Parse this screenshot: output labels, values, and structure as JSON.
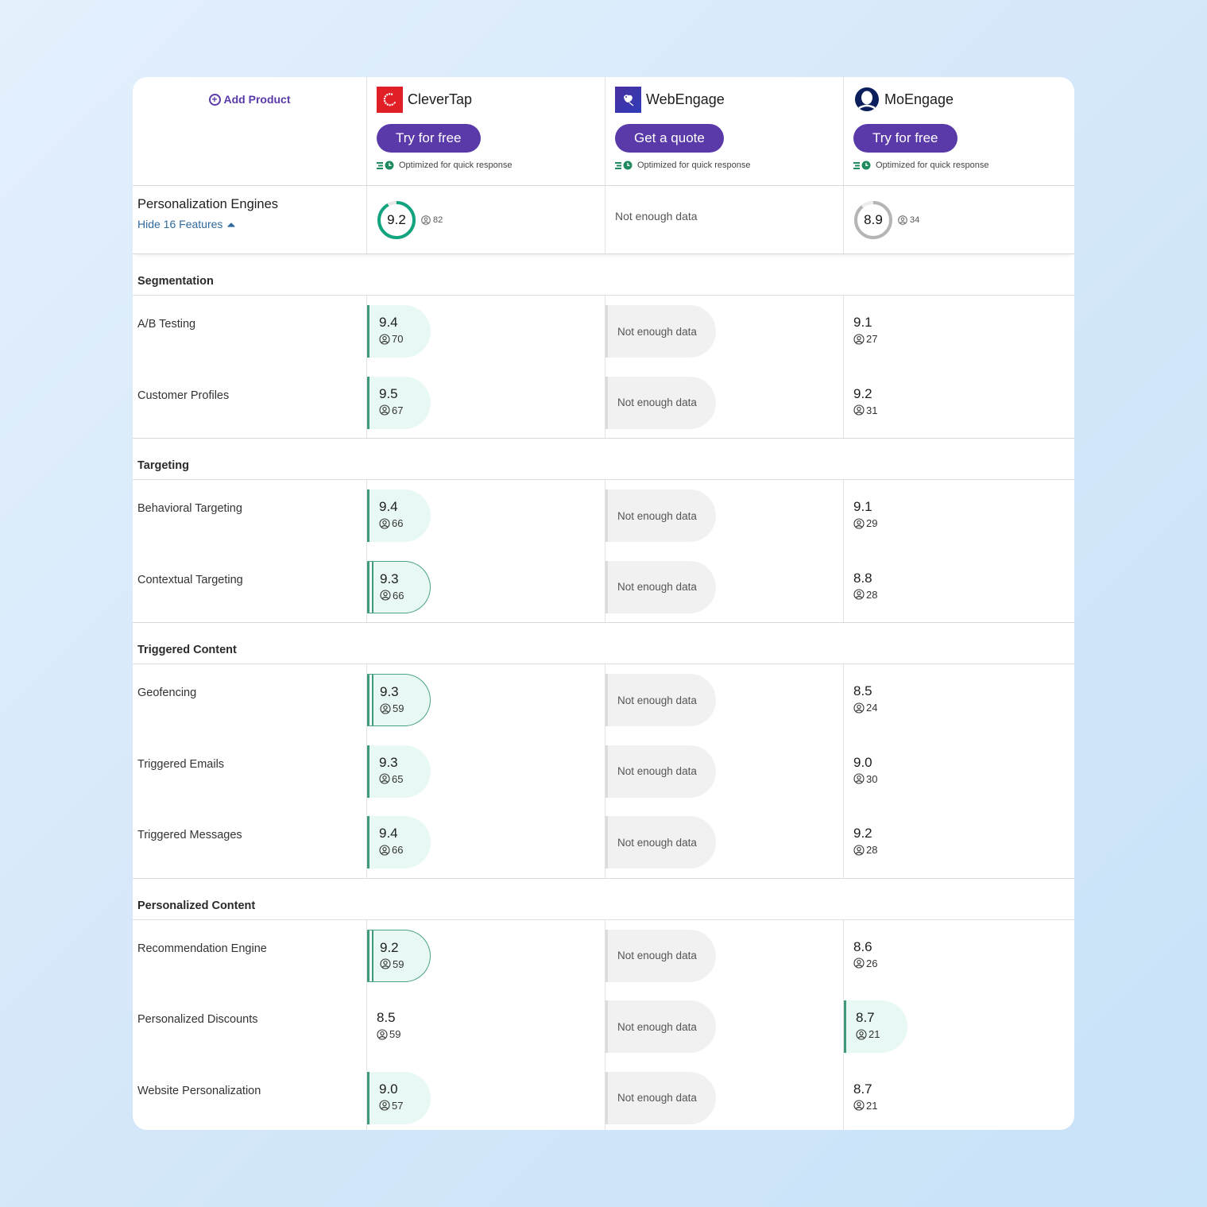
{
  "header": {
    "add_product_label": "Add Product",
    "products": [
      {
        "name": "CleverTap",
        "cta": "Try for free",
        "quick_response": "Optimized for quick response",
        "logo": "clevertap-logo"
      },
      {
        "name": "WebEngage",
        "cta": "Get a quote",
        "quick_response": "Optimized for quick response",
        "logo": "webengage-logo"
      },
      {
        "name": "MoEngage",
        "cta": "Try for free",
        "quick_response": "Optimized for quick response",
        "logo": "moengage-logo"
      }
    ]
  },
  "summary": {
    "title": "Personalization Engines",
    "toggle_label": "Hide 16 Features",
    "scores": [
      {
        "value": "9.2",
        "reviews": "82",
        "ring_color": "#12a37f",
        "fill": 0.92
      },
      {
        "not_enough": "Not enough data"
      },
      {
        "value": "8.9",
        "reviews": "34",
        "ring_color": "#b5b5b5",
        "fill": 0.89
      }
    ]
  },
  "colors": {
    "accent": "#5a39a8",
    "badge_bg": "#e8f8f4",
    "badge_border": "#3e9b7a",
    "ned_bg": "#f1f1f1",
    "link": "#2f6a9e"
  },
  "sections": [
    {
      "title": "Segmentation",
      "features": [
        {
          "name": "A/B Testing",
          "scores": [
            {
              "value": "9.4",
              "reviews": "70",
              "style": "badge"
            },
            {
              "not_enough": "Not enough data"
            },
            {
              "value": "9.1",
              "reviews": "27",
              "style": "plain"
            }
          ]
        },
        {
          "name": "Customer Profiles",
          "scores": [
            {
              "value": "9.5",
              "reviews": "67",
              "style": "badge"
            },
            {
              "not_enough": "Not enough data"
            },
            {
              "value": "9.2",
              "reviews": "31",
              "style": "plain"
            }
          ]
        }
      ]
    },
    {
      "title": "Targeting",
      "features": [
        {
          "name": "Behavioral Targeting",
          "scores": [
            {
              "value": "9.4",
              "reviews": "66",
              "style": "badge"
            },
            {
              "not_enough": "Not enough data"
            },
            {
              "value": "9.1",
              "reviews": "29",
              "style": "plain"
            }
          ]
        },
        {
          "name": "Contextual Targeting",
          "scores": [
            {
              "value": "9.3",
              "reviews": "66",
              "style": "outlined"
            },
            {
              "not_enough": "Not enough data"
            },
            {
              "value": "8.8",
              "reviews": "28",
              "style": "plain"
            }
          ]
        }
      ]
    },
    {
      "title": "Triggered Content",
      "features": [
        {
          "name": "Geofencing",
          "scores": [
            {
              "value": "9.3",
              "reviews": "59",
              "style": "outlined"
            },
            {
              "not_enough": "Not enough data"
            },
            {
              "value": "8.5",
              "reviews": "24",
              "style": "plain"
            }
          ]
        },
        {
          "name": "Triggered Emails",
          "scores": [
            {
              "value": "9.3",
              "reviews": "65",
              "style": "badge"
            },
            {
              "not_enough": "Not enough data"
            },
            {
              "value": "9.0",
              "reviews": "30",
              "style": "plain"
            }
          ]
        },
        {
          "name": "Triggered Messages",
          "scores": [
            {
              "value": "9.4",
              "reviews": "66",
              "style": "badge"
            },
            {
              "not_enough": "Not enough data"
            },
            {
              "value": "9.2",
              "reviews": "28",
              "style": "plain"
            }
          ]
        }
      ]
    },
    {
      "title": "Personalized Content",
      "features": [
        {
          "name": "Recommendation Engine",
          "scores": [
            {
              "value": "9.2",
              "reviews": "59",
              "style": "outlined"
            },
            {
              "not_enough": "Not enough data"
            },
            {
              "value": "8.6",
              "reviews": "26",
              "style": "plain"
            }
          ]
        },
        {
          "name": "Personalized Discounts",
          "scores": [
            {
              "value": "8.5",
              "reviews": "59",
              "style": "plain"
            },
            {
              "not_enough": "Not enough data"
            },
            {
              "value": "8.7",
              "reviews": "21",
              "style": "badge"
            }
          ]
        },
        {
          "name": "Website Personalization",
          "scores": [
            {
              "value": "9.0",
              "reviews": "57",
              "style": "badge"
            },
            {
              "not_enough": "Not enough data"
            },
            {
              "value": "8.7",
              "reviews": "21",
              "style": "plain"
            }
          ]
        }
      ]
    }
  ]
}
